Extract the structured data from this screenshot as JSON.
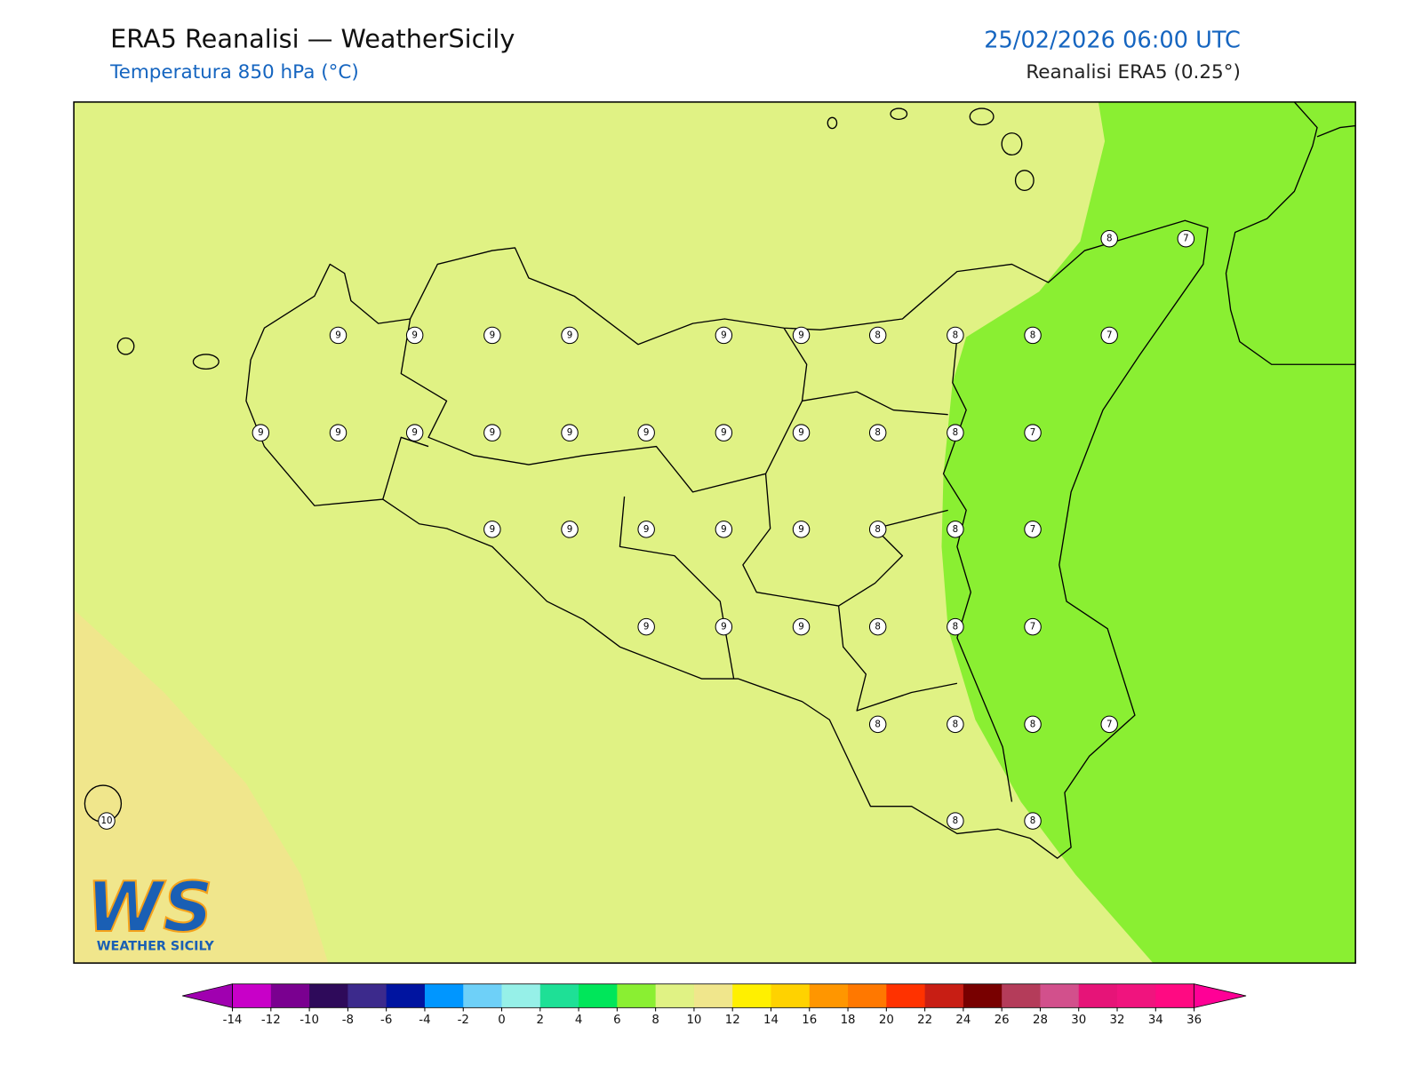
{
  "header": {
    "title": "ERA5 Reanalisi — WeatherSicily",
    "subtitle": "Temperatura 850 hPa (°C)",
    "datetime": "25/02/2026 06:00 UTC",
    "source": "Reanalisi ERA5 (0.25°)"
  },
  "map": {
    "stations": [
      8,
      7,
      9,
      9,
      9,
      9,
      9,
      9,
      8,
      8,
      8,
      7,
      9,
      9,
      9,
      9,
      9,
      9,
      9,
      9,
      8,
      8,
      7,
      9,
      9,
      9,
      9,
      9,
      8,
      8,
      7,
      9,
      9,
      9,
      8,
      8,
      7,
      8,
      8,
      8,
      7,
      10,
      8,
      8
    ]
  },
  "colorbar": {
    "ticks": [
      -14,
      -12,
      -10,
      -8,
      -6,
      -4,
      -2,
      0,
      2,
      4,
      6,
      8,
      10,
      12,
      14,
      16,
      18,
      20,
      22,
      24,
      26,
      28,
      30,
      32,
      34,
      36
    ],
    "colors": [
      "#c800c8",
      "#7a0090",
      "#2e0a5a",
      "#3c2a8c",
      "#0014a0",
      "#0096ff",
      "#6ed0f8",
      "#96f0e8",
      "#1ee096",
      "#00e65a",
      "#8aef32",
      "#e0f284",
      "#f0e68c",
      "#fff000",
      "#ffd200",
      "#ff9600",
      "#ff7800",
      "#ff3200",
      "#c81e14",
      "#780000",
      "#b43c5a",
      "#d2508c",
      "#e61478",
      "#f0147e",
      "#ff0a82"
    ],
    "extend_colors": [
      "#a000b0",
      "#ff0096"
    ]
  },
  "logo": {
    "text": "WS",
    "caption": "WEATHER SICILY"
  }
}
